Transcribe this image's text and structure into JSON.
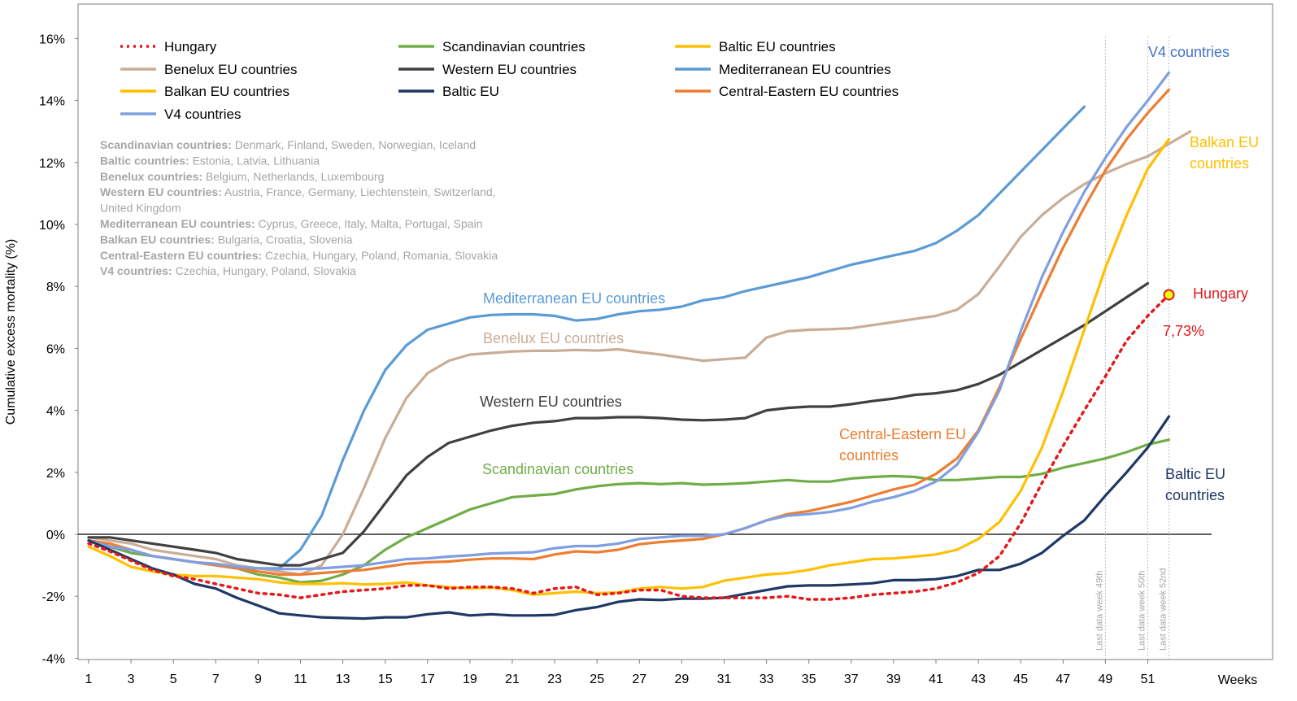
{
  "colors": {
    "hungary": "#e31a1c",
    "scandinavian": "#70ad47",
    "baltic": "#ffc000",
    "benelux": "#c9ad96",
    "western": "#404040",
    "mediterranean": "#5b9bd5",
    "balkan": "#ffc000",
    "baltic_eu": "#1f3864",
    "central_eastern": "#ed7d31",
    "v4": "#7f9fe0"
  },
  "legend": [
    {
      "key": "hungary",
      "label": "Hungary",
      "dash": true
    },
    {
      "key": "scandinavian",
      "label": "Scandinavian countries"
    },
    {
      "key": "baltic",
      "label": "Baltic EU countries"
    },
    {
      "key": "benelux",
      "label": "Benelux EU countries"
    },
    {
      "key": "western",
      "label": "Western EU countries"
    },
    {
      "key": "mediterranean",
      "label": "Mediterranean EU countries"
    },
    {
      "key": "balkan",
      "label": "Balkan EU countries"
    },
    {
      "key": "baltic_eu",
      "label": "Baltic EU"
    },
    {
      "key": "central_eastern",
      "label": "Central-Eastern EU countries"
    },
    {
      "key": "v4",
      "label": "V4 countries"
    }
  ],
  "notes": [
    {
      "bold": "Scandinavian countries:",
      "text": " Denmark, Finland, Sweden, Norwegian, Iceland"
    },
    {
      "bold": "Baltic countries:",
      "text": " Estonia, Latvia, Lithuania"
    },
    {
      "bold": "Benelux countries:",
      "text": " Belgium, Netherlands, Luxembourg"
    },
    {
      "bold": "Western EU countries:",
      "text": " Austria, France, Germany, Liechtenstein, Switzerland,"
    },
    {
      "bold": "",
      "text": "United Kingdom"
    },
    {
      "bold": "Mediterranean EU countries:",
      "text": " Cyprus, Greece, Italy, Malta, Portugal, Spain"
    },
    {
      "bold": "Balkan EU countries:",
      "text": " Bulgaria, Croatia, Slovenia"
    },
    {
      "bold": "Central-Eastern EU countries:",
      "text": " Czechia, Hungary, Poland, Romania, Slovakia"
    },
    {
      "bold": "V4 countries:",
      "text": " Czechia, Hungary, Poland, Slovakia"
    }
  ],
  "inline_labels": {
    "mediterranean": "Mediterranean EU countries",
    "benelux": "Benelux EU countries",
    "western": "Western EU countries",
    "scandinavian": "Scandinavian countries",
    "central_eastern": [
      "Central-Eastern EU",
      "countries"
    ],
    "v4": "V4 countries",
    "balkan": [
      "Balkan EU",
      "countries"
    ],
    "baltic_eu": [
      "Baltic EU",
      "countries"
    ],
    "hungary": "Hungary",
    "hungary_value": "7,73%"
  },
  "vlines": [
    {
      "week": 49,
      "label": "Last data week 49th"
    },
    {
      "week": 51,
      "label": "Last data week 50th"
    },
    {
      "week": 52,
      "label": "Last data week 52nd"
    }
  ],
  "chart_data": {
    "type": "line",
    "xlabel": "Weeks",
    "ylabel": "Cumulative excess mortality (%)",
    "xlim": [
      1,
      53
    ],
    "ylim": [
      -4,
      16
    ],
    "x_ticks": [
      1,
      3,
      5,
      7,
      9,
      11,
      13,
      15,
      17,
      19,
      21,
      23,
      25,
      27,
      29,
      31,
      33,
      35,
      37,
      39,
      41,
      43,
      45,
      47,
      49,
      51
    ],
    "y_ticks": [
      -4,
      -2,
      0,
      2,
      4,
      6,
      8,
      10,
      12,
      14,
      16
    ],
    "y_tick_labels": [
      "-4%",
      "-2%",
      "0%",
      "2%",
      "4%",
      "6%",
      "8%",
      "10%",
      "12%",
      "14%",
      "16%"
    ],
    "series": [
      {
        "key": "mediterranean",
        "name": "Mediterranean EU countries",
        "start_week": 1,
        "values": [
          -0.2,
          -0.4,
          -0.6,
          -0.7,
          -0.8,
          -0.9,
          -1.0,
          -1.1,
          -1.1,
          -1.1,
          -0.5,
          0.6,
          2.4,
          4.0,
          5.3,
          6.1,
          6.6,
          6.8,
          7.0,
          7.08,
          7.1,
          7.1,
          7.05,
          6.9,
          6.95,
          7.1,
          7.2,
          7.25,
          7.35,
          7.55,
          7.65,
          7.85,
          8.0,
          8.15,
          8.3,
          8.5,
          8.7,
          8.85,
          9.0,
          9.15,
          9.4,
          9.8,
          10.3,
          11.0,
          11.7,
          12.4,
          13.1,
          13.8
        ]
      },
      {
        "key": "benelux",
        "name": "Benelux EU countries",
        "start_week": 1,
        "values": [
          -0.1,
          -0.2,
          -0.3,
          -0.5,
          -0.6,
          -0.7,
          -0.8,
          -1.0,
          -1.1,
          -1.2,
          -1.3,
          -1.0,
          0.0,
          1.5,
          3.1,
          4.4,
          5.2,
          5.6,
          5.8,
          5.85,
          5.9,
          5.92,
          5.92,
          5.95,
          5.93,
          5.97,
          5.88,
          5.8,
          5.7,
          5.6,
          5.65,
          5.7,
          6.35,
          6.55,
          6.6,
          6.62,
          6.65,
          6.75,
          6.85,
          6.95,
          7.05,
          7.25,
          7.75,
          8.65,
          9.6,
          10.3,
          10.85,
          11.3,
          11.65,
          11.95,
          12.2,
          12.6,
          13.0
        ]
      },
      {
        "key": "western",
        "name": "Western EU countries",
        "start_week": 1,
        "values": [
          -0.1,
          -0.1,
          -0.2,
          -0.3,
          -0.4,
          -0.5,
          -0.6,
          -0.8,
          -0.9,
          -1.0,
          -1.0,
          -0.8,
          -0.6,
          0.1,
          1.0,
          1.9,
          2.5,
          2.95,
          3.15,
          3.35,
          3.5,
          3.6,
          3.65,
          3.75,
          3.75,
          3.78,
          3.78,
          3.75,
          3.7,
          3.68,
          3.7,
          3.75,
          4.0,
          4.08,
          4.12,
          4.12,
          4.2,
          4.3,
          4.38,
          4.5,
          4.55,
          4.65,
          4.85,
          5.15,
          5.55,
          5.95,
          6.35,
          6.75,
          7.2,
          7.65,
          8.1
        ]
      },
      {
        "key": "scandinavian",
        "name": "Scandinavian countries",
        "start_week": 1,
        "values": [
          -0.2,
          -0.4,
          -0.6,
          -0.7,
          -0.8,
          -0.9,
          -1.0,
          -1.1,
          -1.3,
          -1.4,
          -1.55,
          -1.5,
          -1.3,
          -1.0,
          -0.5,
          -0.1,
          0.2,
          0.5,
          0.8,
          1.0,
          1.2,
          1.25,
          1.3,
          1.45,
          1.55,
          1.62,
          1.65,
          1.62,
          1.65,
          1.6,
          1.62,
          1.65,
          1.7,
          1.75,
          1.7,
          1.7,
          1.8,
          1.85,
          1.88,
          1.85,
          1.75,
          1.75,
          1.8,
          1.85,
          1.85,
          1.95,
          2.15,
          2.3,
          2.45,
          2.65,
          2.9,
          3.05
        ]
      },
      {
        "key": "central_eastern",
        "name": "Central-Eastern EU countries",
        "start_week": 1,
        "values": [
          -0.2,
          -0.3,
          -0.5,
          -0.7,
          -0.8,
          -0.9,
          -1.0,
          -1.1,
          -1.2,
          -1.3,
          -1.3,
          -1.25,
          -1.2,
          -1.15,
          -1.05,
          -0.95,
          -0.9,
          -0.88,
          -0.82,
          -0.78,
          -0.78,
          -0.8,
          -0.65,
          -0.55,
          -0.58,
          -0.5,
          -0.32,
          -0.25,
          -0.2,
          -0.15,
          0.0,
          0.2,
          0.45,
          0.65,
          0.75,
          0.9,
          1.05,
          1.25,
          1.45,
          1.6,
          1.95,
          2.45,
          3.35,
          4.75,
          6.3,
          7.8,
          9.25,
          10.55,
          11.75,
          12.75,
          13.6,
          14.35
        ]
      },
      {
        "key": "v4",
        "name": "V4 countries",
        "start_week": 1,
        "values": [
          -0.2,
          -0.4,
          -0.5,
          -0.7,
          -0.8,
          -0.9,
          -0.95,
          -1.05,
          -1.1,
          -1.12,
          -1.12,
          -1.1,
          -1.05,
          -1.0,
          -0.9,
          -0.8,
          -0.78,
          -0.72,
          -0.68,
          -0.62,
          -0.6,
          -0.58,
          -0.45,
          -0.38,
          -0.38,
          -0.3,
          -0.15,
          -0.1,
          -0.05,
          -0.05,
          0.0,
          0.2,
          0.45,
          0.6,
          0.65,
          0.72,
          0.85,
          1.05,
          1.2,
          1.4,
          1.7,
          2.25,
          3.3,
          4.65,
          6.55,
          8.3,
          9.75,
          11.05,
          12.15,
          13.15,
          14.0,
          14.9
        ]
      },
      {
        "key": "balkan",
        "name": "Balkan EU countries",
        "start_week": 1,
        "values": [
          -0.4,
          -0.7,
          -1.05,
          -1.2,
          -1.3,
          -1.35,
          -1.35,
          -1.4,
          -1.45,
          -1.55,
          -1.6,
          -1.6,
          -1.58,
          -1.62,
          -1.6,
          -1.55,
          -1.65,
          -1.7,
          -1.75,
          -1.72,
          -1.8,
          -1.95,
          -1.9,
          -1.85,
          -1.9,
          -1.88,
          -1.75,
          -1.7,
          -1.75,
          -1.7,
          -1.5,
          -1.4,
          -1.3,
          -1.25,
          -1.15,
          -1.0,
          -0.9,
          -0.8,
          -0.78,
          -0.72,
          -0.65,
          -0.5,
          -0.15,
          0.4,
          1.4,
          2.8,
          4.6,
          6.6,
          8.6,
          10.3,
          11.8,
          12.75
        ]
      },
      {
        "key": "baltic_eu",
        "name": "Baltic EU",
        "start_week": 1,
        "values": [
          -0.2,
          -0.5,
          -0.8,
          -1.1,
          -1.3,
          -1.6,
          -1.75,
          -2.05,
          -2.3,
          -2.55,
          -2.62,
          -2.68,
          -2.7,
          -2.72,
          -2.68,
          -2.68,
          -2.58,
          -2.52,
          -2.62,
          -2.58,
          -2.62,
          -2.62,
          -2.6,
          -2.45,
          -2.35,
          -2.18,
          -2.1,
          -2.12,
          -2.08,
          -2.08,
          -2.05,
          -1.92,
          -1.8,
          -1.68,
          -1.65,
          -1.65,
          -1.62,
          -1.58,
          -1.48,
          -1.48,
          -1.45,
          -1.35,
          -1.15,
          -1.15,
          -0.95,
          -0.6,
          -0.05,
          0.45,
          1.25,
          2.0,
          2.8,
          3.8
        ]
      },
      {
        "key": "hungary",
        "name": "Hungary",
        "start_week": 1,
        "values": [
          -0.3,
          -0.55,
          -0.85,
          -1.15,
          -1.35,
          -1.45,
          -1.6,
          -1.75,
          -1.9,
          -1.95,
          -2.05,
          -1.95,
          -1.85,
          -1.8,
          -1.75,
          -1.65,
          -1.65,
          -1.75,
          -1.7,
          -1.7,
          -1.75,
          -1.9,
          -1.75,
          -1.7,
          -1.95,
          -1.9,
          -1.8,
          -1.8,
          -2.0,
          -2.05,
          -2.05,
          -2.05,
          -2.05,
          -2.0,
          -2.1,
          -2.1,
          -2.05,
          -1.95,
          -1.9,
          -1.85,
          -1.75,
          -1.55,
          -1.25,
          -0.7,
          0.35,
          1.65,
          2.85,
          4.0,
          5.1,
          6.25,
          7.05,
          7.73
        ]
      }
    ]
  }
}
